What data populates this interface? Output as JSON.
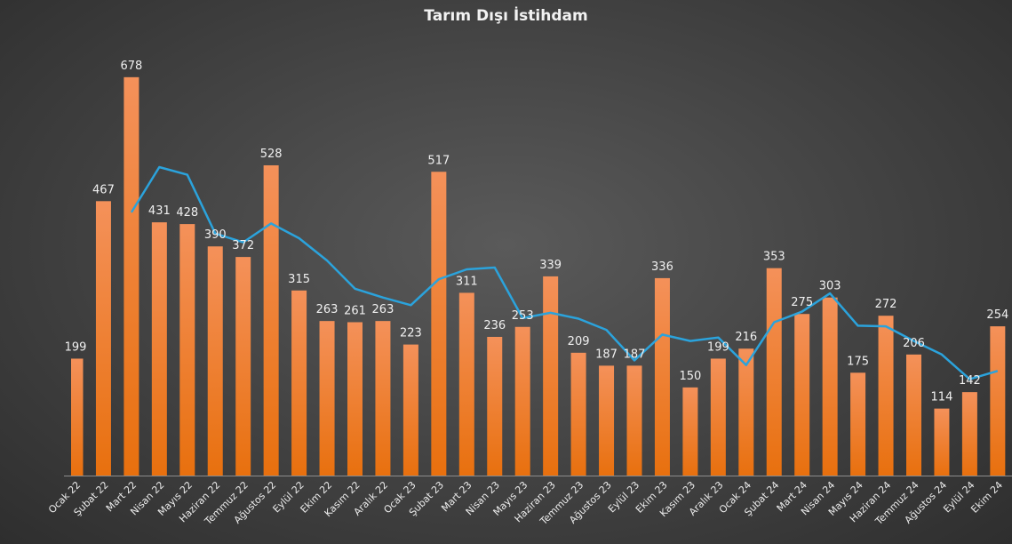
{
  "colors": {
    "bar_top": "#f4915a",
    "bar_bottom": "#e8700e",
    "line": "#2ba3dc",
    "axis": "#8c8c8c",
    "text": "#f0f0f0"
  },
  "chart_data": {
    "type": "bar",
    "title": "Tarım Dışı İstihdam",
    "xlabel": "",
    "ylabel": "",
    "ylim": [
      0,
      700
    ],
    "grid": false,
    "categories": [
      "Ocak 22",
      "Şubat 22",
      "Mart 22",
      "Nisan 22",
      "Mayıs 22",
      "Haziran 22",
      "Temmuz 22",
      "Ağustos 22",
      "Eylül 22",
      "Ekim 22",
      "Kasım 22",
      "Aralık 22",
      "Ocak 23",
      "Şubat 23",
      "Mart 23",
      "Nisan 23",
      "Mayıs 23",
      "Haziran 23",
      "Temmuz 23",
      "Ağustos 23",
      "Eylül 23",
      "Ekim 23",
      "Kasım 23",
      "Aralık 23",
      "Ocak 24",
      "Şubat 24",
      "Mart 24",
      "Nisan 24",
      "Mayıs 24",
      "Haziran 24",
      "Temmuz 24",
      "Ağustos 24",
      "Eylül 24",
      "Ekim 24"
    ],
    "values": [
      199,
      467,
      678,
      431,
      428,
      390,
      372,
      528,
      315,
      263,
      261,
      263,
      223,
      517,
      311,
      236,
      253,
      339,
      209,
      187,
      187,
      336,
      150,
      199,
      216,
      353,
      275,
      303,
      175,
      272,
      206,
      114,
      142,
      254
    ],
    "series": [
      {
        "type": "bar",
        "values": [
          199,
          467,
          678,
          431,
          428,
          390,
          372,
          528,
          315,
          263,
          261,
          263,
          223,
          517,
          311,
          236,
          253,
          339,
          209,
          187,
          187,
          336,
          150,
          199,
          216,
          353,
          275,
          303,
          175,
          272,
          206,
          114,
          142,
          254
        ]
      },
      {
        "type": "line",
        "values": [
          null,
          null,
          448,
          525,
          512,
          412,
          397,
          429,
          404,
          366,
          318,
          303,
          290,
          334,
          351,
          354,
          268,
          277,
          267,
          248,
          196,
          240,
          229,
          235,
          188,
          261,
          279,
          310,
          255,
          254,
          229,
          206,
          164,
          178
        ]
      }
    ]
  }
}
